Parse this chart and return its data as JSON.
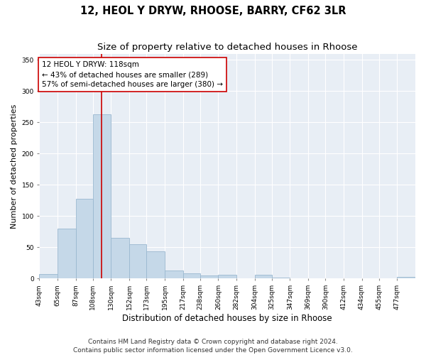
{
  "title": "12, HEOL Y DRYW, RHOOSE, BARRY, CF62 3LR",
  "subtitle": "Size of property relative to detached houses in Rhoose",
  "xlabel": "Distribution of detached houses by size in Rhoose",
  "ylabel": "Number of detached properties",
  "footer_line1": "Contains HM Land Registry data © Crown copyright and database right 2024.",
  "footer_line2": "Contains public sector information licensed under the Open Government Licence v3.0.",
  "bar_color": "#c5d8e8",
  "bar_edge_color": "#9ab8d0",
  "vline_color": "#cc0000",
  "vline_x": 118,
  "annotation_text": "12 HEOL Y DRYW: 118sqm\n← 43% of detached houses are smaller (289)\n57% of semi-detached houses are larger (380) →",
  "annotation_box_color": "#ffffff",
  "annotation_edge_color": "#cc0000",
  "categories": [
    "43sqm",
    "65sqm",
    "87sqm",
    "108sqm",
    "130sqm",
    "152sqm",
    "173sqm",
    "195sqm",
    "217sqm",
    "238sqm",
    "260sqm",
    "282sqm",
    "304sqm",
    "325sqm",
    "347sqm",
    "369sqm",
    "390sqm",
    "412sqm",
    "434sqm",
    "455sqm",
    "477sqm"
  ],
  "bin_edges": [
    43,
    65,
    87,
    108,
    130,
    152,
    173,
    195,
    217,
    238,
    260,
    282,
    304,
    325,
    347,
    369,
    390,
    412,
    434,
    455,
    477,
    499
  ],
  "bar_heights": [
    7,
    80,
    128,
    263,
    65,
    55,
    44,
    13,
    8,
    5,
    6,
    0,
    6,
    2,
    0,
    0,
    0,
    0,
    0,
    0,
    3
  ],
  "ylim": [
    0,
    360
  ],
  "yticks": [
    0,
    50,
    100,
    150,
    200,
    250,
    300,
    350
  ],
  "background_color": "#ffffff",
  "plot_bg_color": "#e8eef5",
  "grid_color": "#ffffff",
  "title_fontsize": 10.5,
  "subtitle_fontsize": 9.5,
  "ylabel_fontsize": 8,
  "xlabel_fontsize": 8.5,
  "tick_fontsize": 6.5,
  "annotation_fontsize": 7.5,
  "footer_fontsize": 6.5
}
